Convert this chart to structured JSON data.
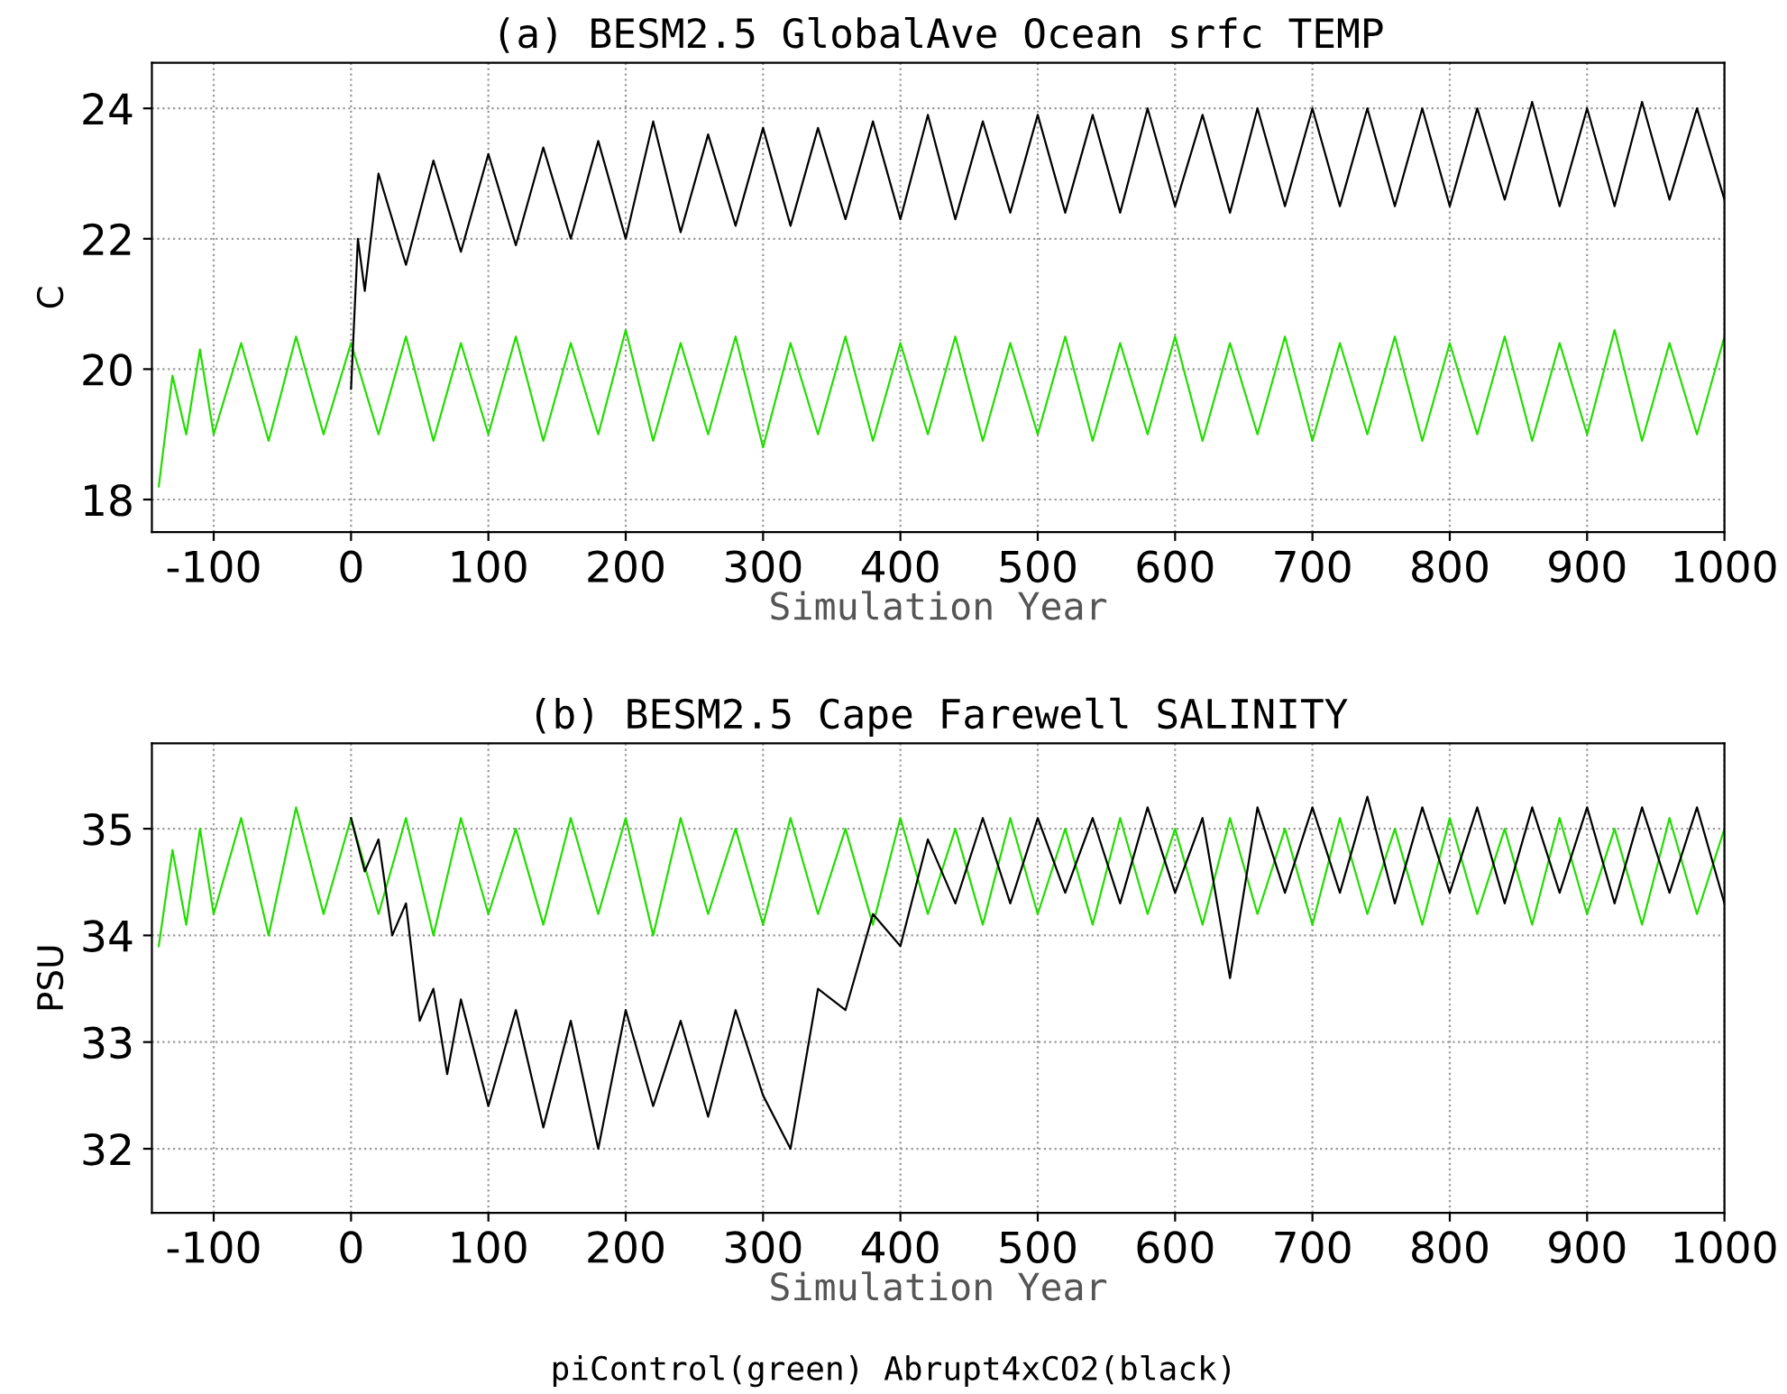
{
  "chart_data": [
    {
      "type": "line",
      "title": "(a) BESM2.5 GlobalAve Ocean srfc TEMP",
      "xlabel": "Simulation Year",
      "ylabel": "C",
      "xlim": [
        -145,
        1000
      ],
      "ylim": [
        17.5,
        24.7
      ],
      "xticks": [
        -100,
        0,
        100,
        200,
        300,
        400,
        500,
        600,
        700,
        800,
        900,
        1000
      ],
      "yticks": [
        18,
        20,
        22,
        24
      ],
      "grid": true,
      "legend": false,
      "marker": "none",
      "line_style": "solid",
      "series": [
        {
          "color": "#22dd00",
          "x": [
            -140,
            -130,
            -120,
            -110,
            -100,
            -80,
            -60,
            -40,
            -20,
            0,
            20,
            40,
            60,
            80,
            100,
            120,
            140,
            160,
            180,
            200,
            220,
            240,
            260,
            280,
            300,
            320,
            340,
            360,
            380,
            400,
            420,
            440,
            460,
            480,
            500,
            520,
            540,
            560,
            580,
            600,
            620,
            640,
            660,
            680,
            700,
            720,
            740,
            760,
            780,
            800,
            820,
            840,
            860,
            880,
            900,
            920,
            940,
            960,
            980,
            1000
          ],
          "values": [
            18.2,
            19.9,
            19.0,
            20.3,
            19.0,
            20.4,
            18.9,
            20.5,
            19.0,
            20.4,
            19.0,
            20.5,
            18.9,
            20.4,
            19.0,
            20.5,
            18.9,
            20.4,
            19.0,
            20.6,
            18.9,
            20.4,
            19.0,
            20.5,
            18.8,
            20.4,
            19.0,
            20.5,
            18.9,
            20.4,
            19.0,
            20.5,
            18.9,
            20.4,
            19.0,
            20.5,
            18.9,
            20.4,
            19.0,
            20.5,
            18.9,
            20.4,
            19.0,
            20.5,
            18.9,
            20.4,
            19.0,
            20.5,
            18.9,
            20.4,
            19.0,
            20.5,
            18.9,
            20.4,
            19.0,
            20.6,
            18.9,
            20.4,
            19.0,
            20.5
          ]
        },
        {
          "color": "#000000",
          "x": [
            0,
            5,
            10,
            20,
            40,
            60,
            80,
            100,
            120,
            140,
            160,
            180,
            200,
            220,
            240,
            260,
            280,
            300,
            320,
            340,
            360,
            380,
            400,
            420,
            440,
            460,
            480,
            500,
            520,
            540,
            560,
            580,
            600,
            620,
            640,
            660,
            680,
            700,
            720,
            740,
            760,
            780,
            800,
            820,
            840,
            860,
            880,
            900,
            920,
            940,
            960,
            980,
            1000
          ],
          "values": [
            19.7,
            22.0,
            21.2,
            23.0,
            21.6,
            23.2,
            21.8,
            23.3,
            21.9,
            23.4,
            22.0,
            23.5,
            22.0,
            23.8,
            22.1,
            23.6,
            22.2,
            23.7,
            22.2,
            23.7,
            22.3,
            23.8,
            22.3,
            23.9,
            22.3,
            23.8,
            22.4,
            23.9,
            22.4,
            23.9,
            22.4,
            24.0,
            22.5,
            23.9,
            22.4,
            24.0,
            22.5,
            24.0,
            22.5,
            24.0,
            22.5,
            24.0,
            22.5,
            24.0,
            22.6,
            24.1,
            22.5,
            24.0,
            22.5,
            24.1,
            22.6,
            24.0,
            22.6
          ]
        }
      ]
    },
    {
      "type": "line",
      "title": "(b) BESM2.5 Cape Farewell SALINITY",
      "xlabel": "Simulation Year",
      "ylabel": "PSU",
      "xlim": [
        -145,
        1000
      ],
      "ylim": [
        31.4,
        35.8
      ],
      "xticks": [
        -100,
        0,
        100,
        200,
        300,
        400,
        500,
        600,
        700,
        800,
        900,
        1000
      ],
      "yticks": [
        32,
        33,
        34,
        35
      ],
      "grid": true,
      "legend": false,
      "marker": "none",
      "line_style": "solid",
      "annotations": [
        "piControl(green) Abrupt4xCO2(black)"
      ],
      "series": [
        {
          "color": "#22dd00",
          "x": [
            -140,
            -130,
            -120,
            -110,
            -100,
            -80,
            -60,
            -40,
            -20,
            0,
            20,
            40,
            60,
            80,
            100,
            120,
            140,
            160,
            180,
            200,
            220,
            240,
            260,
            280,
            300,
            320,
            340,
            360,
            380,
            400,
            420,
            440,
            460,
            480,
            500,
            520,
            540,
            560,
            580,
            600,
            620,
            640,
            660,
            680,
            700,
            720,
            740,
            760,
            780,
            800,
            820,
            840,
            860,
            880,
            900,
            920,
            940,
            960,
            980,
            1000
          ],
          "values": [
            33.9,
            34.8,
            34.1,
            35.0,
            34.2,
            35.1,
            34.0,
            35.2,
            34.2,
            35.1,
            34.2,
            35.1,
            34.0,
            35.1,
            34.2,
            35.0,
            34.1,
            35.1,
            34.2,
            35.1,
            34.0,
            35.1,
            34.2,
            35.0,
            34.1,
            35.1,
            34.2,
            35.0,
            34.1,
            35.1,
            34.2,
            35.0,
            34.1,
            35.1,
            34.2,
            35.0,
            34.1,
            35.1,
            34.2,
            35.0,
            34.1,
            35.1,
            34.2,
            35.0,
            34.1,
            35.1,
            34.2,
            35.0,
            34.1,
            35.1,
            34.2,
            35.0,
            34.1,
            35.1,
            34.2,
            35.0,
            34.1,
            35.1,
            34.2,
            35.0
          ]
        },
        {
          "color": "#000000",
          "x": [
            0,
            10,
            20,
            30,
            40,
            50,
            60,
            70,
            80,
            100,
            120,
            140,
            160,
            180,
            200,
            220,
            240,
            260,
            280,
            300,
            320,
            340,
            360,
            380,
            400,
            420,
            440,
            460,
            480,
            500,
            520,
            540,
            560,
            580,
            600,
            620,
            640,
            660,
            680,
            700,
            720,
            740,
            760,
            780,
            800,
            820,
            840,
            860,
            880,
            900,
            920,
            940,
            960,
            980,
            1000
          ],
          "values": [
            35.1,
            34.6,
            34.9,
            34.0,
            34.3,
            33.2,
            33.5,
            32.7,
            33.4,
            32.4,
            33.3,
            32.2,
            33.2,
            32.0,
            33.3,
            32.4,
            33.2,
            32.3,
            33.3,
            32.5,
            32.0,
            33.5,
            33.3,
            34.2,
            33.9,
            34.9,
            34.3,
            35.1,
            34.3,
            35.1,
            34.4,
            35.1,
            34.3,
            35.2,
            34.4,
            35.1,
            33.6,
            35.2,
            34.4,
            35.2,
            34.4,
            35.3,
            34.3,
            35.2,
            34.4,
            35.2,
            34.3,
            35.2,
            34.4,
            35.2,
            34.3,
            35.2,
            34.4,
            35.2,
            34.3
          ]
        }
      ]
    }
  ]
}
